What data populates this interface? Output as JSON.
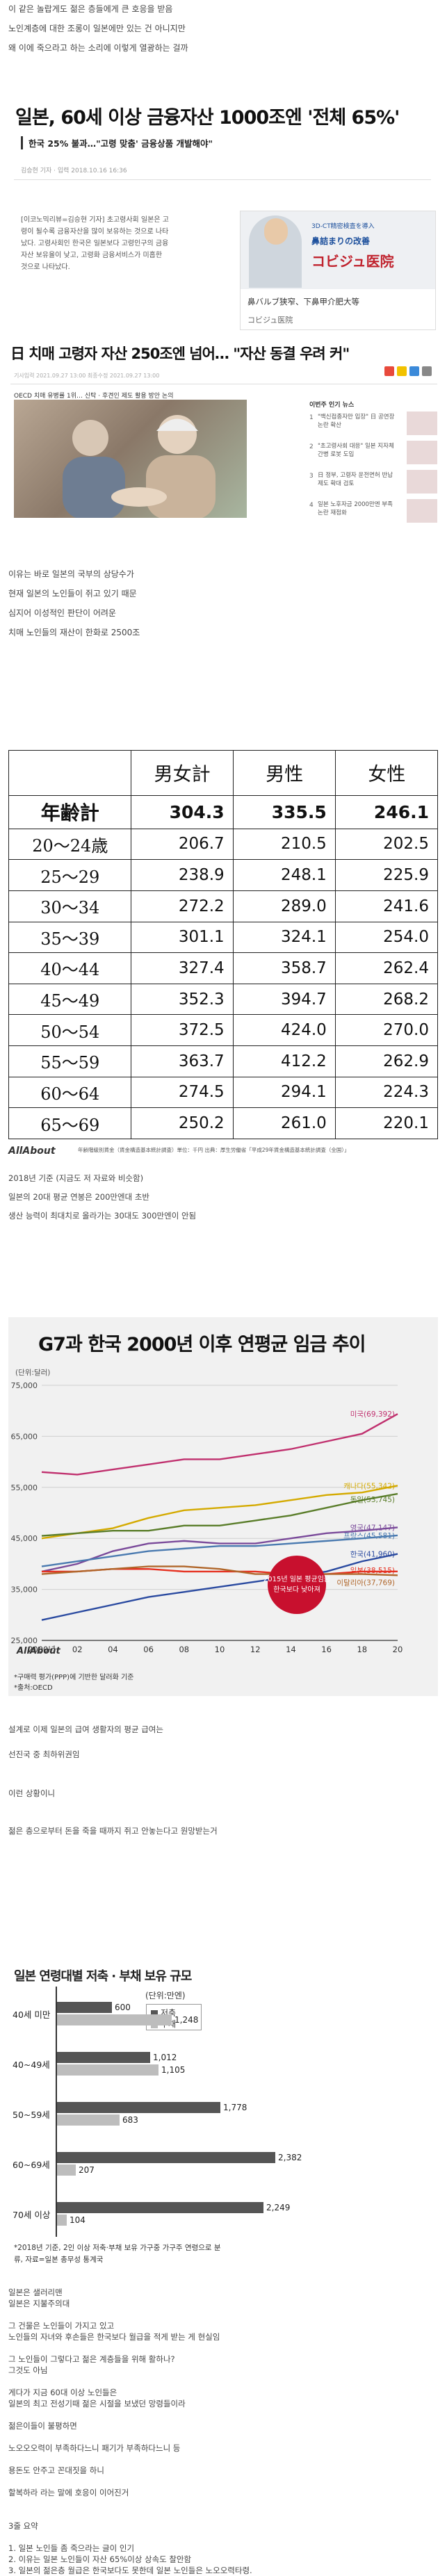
{
  "intro_lines": [
    "이 같은 놀랍게도 젊은 층들에게 큰 호응을 받음",
    "노인계층에 대한 조롱이 일본에만 있는 건 아니지만",
    "왜 이에 죽으라고 하는 소리에 이렇게 열광하는 걸까"
  ],
  "article1": {
    "title": "일본, 60세 이상 금융자산 1000조엔 '전체 65%'",
    "subtitle": "한국 25% 불과…\"고령 맞춤' 금융상품 개발해야\"",
    "meta": "김승현 기자 · 입력 2018.10.16 16:36",
    "body": [
      "[이코노믹리뷰=김승현 기자] 초고령사회 일본은 고",
      "령이 될수록 금융자산을 많이 보유하는 것으로 나타",
      "났다. 고령사회인 한국은 일본보다 고령인구의 금융",
      "자산 보유율이 낮고, 고령화 금융서비스가 미흡한",
      "것으로 나타났다."
    ]
  },
  "ad": {
    "line_small": "3D-CT精密検査を導入",
    "line1": "鼻詰まりの改善",
    "line2": "コビジュ医院",
    "mid": "鼻バルブ狭窄、下鼻甲介肥大等",
    "bottom": "コビジュ医院"
  },
  "article2": {
    "title": "日 치매 고령자 자산 250조엔 넘어… \"자산 동결 우려 커\"",
    "meta": "기사입력 2021.09.27 13:00   최종수정 2021.09.27 13:00",
    "caption": "OECD 치매 유병률 1위… 신탁 · 후견인 제도 활용 방안 논의",
    "side_title": "이번주 인기 뉴스",
    "side_items": [
      {
        "num": "1",
        "text": "\"백신접종자만 입장\" 日 공연장 논란 확산"
      },
      {
        "num": "2",
        "text": "\"초고령사회 대응\" 일본 지자체 간병 로봇 도입"
      },
      {
        "num": "3",
        "text": "日 정부, 고령자 운전면허 반납 제도 확대 검토"
      },
      {
        "num": "4",
        "text": "일본 노후자금 2000만엔 부족 논란 재점화"
      }
    ]
  },
  "middle_lines": [
    "이유는 바로 일본의 국부의 상당수가",
    "현재 일본의 노인들이 쥐고 있기 때문",
    "심지어 이성적인 판단이 어려운",
    "치매 노인들의 재산이 한화로 2500조"
  ],
  "salary_table": {
    "headers": [
      "",
      "男女計",
      "男性",
      "女性"
    ],
    "rows": [
      [
        "年齢計",
        "304.3",
        "335.5",
        "246.1"
      ],
      [
        "20～24歳",
        "206.7",
        "210.5",
        "202.5"
      ],
      [
        "25～29",
        "238.9",
        "248.1",
        "225.9"
      ],
      [
        "30～34",
        "272.2",
        "289.0",
        "241.6"
      ],
      [
        "35～39",
        "301.1",
        "324.1",
        "254.0"
      ],
      [
        "40～44",
        "327.4",
        "358.7",
        "262.4"
      ],
      [
        "45～49",
        "352.3",
        "394.7",
        "268.2"
      ],
      [
        "50～54",
        "372.5",
        "424.0",
        "270.0"
      ],
      [
        "55～59",
        "363.7",
        "412.2",
        "262.9"
      ],
      [
        "60～64",
        "274.5",
        "294.1",
        "224.3"
      ],
      [
        "65～69",
        "250.2",
        "261.0",
        "220.1"
      ]
    ],
    "logo": "AllAbout",
    "source": "年齢階級別賃金（賃金構造基本統計調査）単位：千円   出典：厚生労働省「平成29年賃金構造基本統計調査（全国）」"
  },
  "after_table_lines": [
    "2018년 기준 (지금도 저 자료와 비슷함)",
    "일본의 20대 평균 연봉은 200만엔대 초반",
    "생산 능력이 최대치로 올라가는 30대도 300만엔이 안됨"
  ],
  "chart_data": {
    "type": "line",
    "title": "G7과 한국 2000년 이후 연평균 임금 추이",
    "ylabel": "(단위:달러)",
    "x": [
      "2000년",
      "02",
      "04",
      "06",
      "08",
      "10",
      "12",
      "14",
      "16",
      "18",
      "20"
    ],
    "ylim": [
      25000,
      75000
    ],
    "yticks": [
      "25,000",
      "35,000",
      "45,000",
      "55,000",
      "65,000",
      "75,000"
    ],
    "grid": true,
    "series": [
      {
        "name": "미국",
        "label": "미국(69,392)",
        "color": "#c0306e",
        "values": [
          58000,
          57500,
          58500,
          59500,
          60500,
          60500,
          61500,
          62500,
          64000,
          65500,
          69392
        ]
      },
      {
        "name": "캐나다",
        "label": "캐나다(55,342)",
        "color": "#d4aa00",
        "values": [
          45000,
          46000,
          47000,
          49000,
          50500,
          51000,
          51500,
          52500,
          53500,
          54000,
          55342
        ]
      },
      {
        "name": "독일",
        "label": "독일(53,745)",
        "color": "#5a7d2a",
        "values": [
          45500,
          46000,
          46500,
          46500,
          47500,
          47500,
          48500,
          49500,
          51000,
          52500,
          53745
        ]
      },
      {
        "name": "영국",
        "label": "영국(47,147)",
        "color": "#7a4a9a",
        "values": [
          38500,
          40000,
          42500,
          44000,
          44500,
          44000,
          44000,
          45000,
          46000,
          46500,
          47147
        ]
      },
      {
        "name": "프랑스",
        "label": "프랑스(45,581)",
        "color": "#4a7ab0",
        "values": [
          39500,
          40500,
          41500,
          42500,
          43000,
          43500,
          43500,
          44000,
          44500,
          45000,
          45581
        ]
      },
      {
        "name": "한국",
        "label": "한국(41,960)",
        "color": "#2a4aa0",
        "values": [
          29000,
          30500,
          32000,
          33500,
          34500,
          35500,
          36500,
          37500,
          38500,
          40500,
          41960
        ]
      },
      {
        "name": "일본",
        "label": "일본(38,515)",
        "color": "#e63020",
        "values": [
          38500,
          38500,
          39000,
          39000,
          38500,
          38500,
          38500,
          38000,
          38000,
          38500,
          38515
        ]
      },
      {
        "name": "이탈리아",
        "label": "이탈리아(37,769)",
        "color": "#b0662a",
        "values": [
          38000,
          38500,
          39000,
          39500,
          39500,
          39000,
          38000,
          38000,
          38000,
          38000,
          37769
        ]
      }
    ],
    "annotation": "2015년 일본 평균임금 한국보다 낮아져",
    "notes": [
      "*구매력 평가(PPP)에 기반한 달러화 기준",
      "*출처:OECD"
    ],
    "logo": "AllAbout"
  },
  "after_chart_lines": [
    "설계로 이제 일본의 급여 생활자의 평균 급여는",
    "선진국 중 최하위권임",
    "이런 상황이니",
    "젊은 층으로부터 돈을 죽을 때까지 쥐고 안놓는다고 원망받는거"
  ],
  "bar_chart": {
    "title": "일본 연령대별 저축 · 부채 보유 규모",
    "unit": "(단위:만엔)",
    "legend": [
      "저축",
      "부채"
    ],
    "colors": {
      "savings": "#555555",
      "debt": "#bdbdbd"
    },
    "max": 2500,
    "categories": [
      {
        "label": "40세 미만",
        "savings": 600,
        "savings_label": "600",
        "debt": 1248,
        "debt_label": "1,248"
      },
      {
        "label": "40~49세",
        "savings": 1012,
        "savings_label": "1,012",
        "debt": 1105,
        "debt_label": "1,105"
      },
      {
        "label": "50~59세",
        "savings": 1778,
        "savings_label": "1,778",
        "debt": 683,
        "debt_label": "683"
      },
      {
        "label": "60~69세",
        "savings": 2382,
        "savings_label": "2,382",
        "debt": 207,
        "debt_label": "207"
      },
      {
        "label": "70세 이상",
        "savings": 2249,
        "savings_label": "2,249",
        "debt": 104,
        "debt_label": "104"
      }
    ],
    "note": "*2018년 기준, 2인 이상 저축·부채 보유 가구중 가구주 연령으로 분류, 자료=일본 총무성 통계국"
  },
  "closing_lines": [
    "일본은 샐러리맨",
    "일본은 지불주의대",
    "",
    "그 건물은 노인들이 가지고 있고",
    "노인들의 자녀와 후손들은 한국보다 월급을 적게 받는 게 현실임",
    "",
    "그 노인들이 그렇다고 젊은 계층들을 위해 활하나?",
    "그것도 아님",
    "",
    "게다가 지금 60대 이상 노인들은",
    "일본의 최고 전성기때 젊은 시절을 보냈던 망령들이라",
    "",
    "젊은이들이 불평하면",
    "",
    "노오오오력이 부족하다느니 패기가 부족하다느니 등",
    "",
    "용돈도 안주고 꼰대짓을 하니",
    "",
    "할복하라 라는 말에 호응이 이어진거",
    "",
    "",
    "3줄 요약",
    "",
    "1. 일본 노인들 좀 죽으라는 글이 인기",
    "2. 이유는 일본 노인들이 자산 65%이상 상속도 찰안함",
    "3. 일본의 젊은층 월급은 한국보다도 못한데 일본 노인들은 노오오력타령."
  ]
}
